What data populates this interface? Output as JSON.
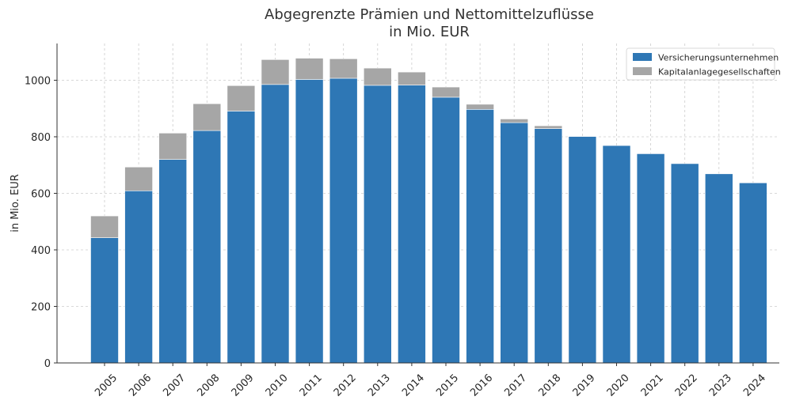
{
  "chart_data": {
    "type": "bar",
    "stacked": true,
    "title": "Abgegrenzte Prämien und Nettomittelzuflüsse",
    "subtitle": "in Mio. EUR",
    "xlabel": "",
    "ylabel": "in Mio. EUR",
    "ylim": [
      0,
      1130
    ],
    "yticks": [
      0,
      200,
      400,
      600,
      800,
      1000
    ],
    "grid": true,
    "legend_position": "top-right",
    "categories": [
      "2005",
      "2006",
      "2007",
      "2008",
      "2009",
      "2010",
      "2011",
      "2012",
      "2013",
      "2014",
      "2015",
      "2016",
      "2017",
      "2018",
      "2019",
      "2020",
      "2021",
      "2022",
      "2023",
      "2024"
    ],
    "series": [
      {
        "name": "Versicherungsunternehmen",
        "color": "#2e77b5",
        "values": [
          443,
          609,
          720,
          822,
          891,
          985,
          1003,
          1007,
          982,
          983,
          940,
          897,
          850,
          829,
          801,
          769,
          740,
          705,
          669,
          637
        ]
      },
      {
        "name": "Kapitalanlagegesellschaften",
        "color": "#a6a6a6",
        "values": [
          77,
          84,
          93,
          95,
          90,
          88,
          75,
          69,
          61,
          46,
          36,
          18,
          13,
          10,
          0,
          0,
          0,
          0,
          0,
          0
        ]
      }
    ]
  }
}
